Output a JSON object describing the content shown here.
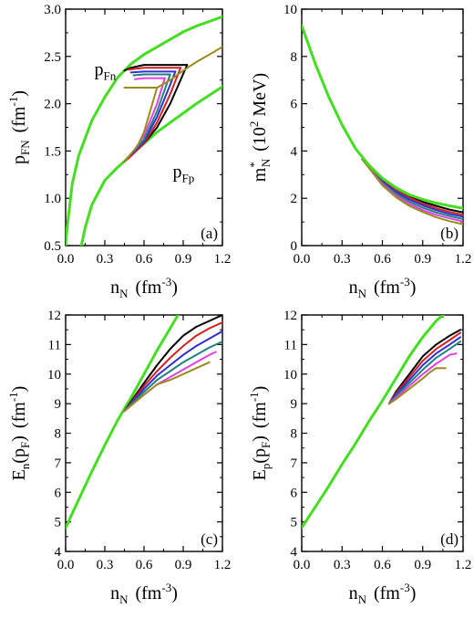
{
  "chart_data": [
    {
      "panel": "a",
      "type": "line",
      "panel_label": "(a)",
      "ylabel_main": "p",
      "ylabel_sub": "FN",
      "ylabel_unit": "(fm",
      "ylabel_exp": "-1",
      "ylabel_close": ")",
      "xlabel_main": "n",
      "xlabel_sub": "N",
      "xlabel_unit": "(fm",
      "xlabel_exp": "-3",
      "xlabel_close": ")",
      "xlim": [
        0,
        1.2
      ],
      "ylim": [
        0.5,
        3.0
      ],
      "xticks": [
        "0.0",
        "0.3",
        "0.6",
        "0.9",
        "1.2"
      ],
      "yticks": [
        "0.5",
        "1.0",
        "1.5",
        "2.0",
        "2.5",
        "3.0"
      ],
      "annotations": [
        {
          "main": "p",
          "sub": "Fn",
          "x": 0.22,
          "y": 2.3
        },
        {
          "main": "p",
          "sub": "Fp",
          "x": 0.82,
          "y": 1.22
        }
      ],
      "series": [
        {
          "color": "#44dd22",
          "width": 3,
          "x": [
            0.0,
            0.01,
            0.05,
            0.1,
            0.2,
            0.3,
            0.4,
            0.45,
            0.5,
            0.6,
            0.7,
            0.8,
            0.9,
            1.0,
            1.1,
            1.2
          ],
          "y": [
            0.5,
            0.67,
            1.15,
            1.45,
            1.82,
            2.07,
            2.28,
            2.35,
            2.42,
            2.52,
            2.6,
            2.68,
            2.76,
            2.82,
            2.87,
            2.92
          ]
        },
        {
          "color": "#44dd22",
          "width": 3,
          "x": [
            0.12,
            0.15,
            0.2,
            0.3,
            0.4,
            0.45,
            0.5,
            0.6,
            0.7,
            0.8,
            0.9,
            1.0,
            1.1,
            1.2
          ],
          "y": [
            0.5,
            0.69,
            0.93,
            1.19,
            1.33,
            1.39,
            1.46,
            1.58,
            1.7,
            1.8,
            1.9,
            2.0,
            2.09,
            2.18
          ]
        },
        {
          "color": "#000000",
          "width": 2,
          "x": [
            0.45,
            0.5,
            0.6,
            0.7,
            0.8,
            0.9,
            0.93
          ],
          "y": [
            2.35,
            2.38,
            2.41,
            2.41,
            2.41,
            2.41,
            2.41
          ]
        },
        {
          "color": "#000000",
          "width": 2,
          "x": [
            0.45,
            0.5,
            0.6,
            0.7,
            0.8,
            0.93
          ],
          "y": [
            1.39,
            1.46,
            1.58,
            1.75,
            2.0,
            2.41
          ]
        },
        {
          "color": "#d32020",
          "width": 2,
          "x": [
            0.48,
            0.6,
            0.7,
            0.8,
            0.88
          ],
          "y": [
            2.36,
            2.38,
            2.38,
            2.38,
            2.38
          ]
        },
        {
          "color": "#d32020",
          "width": 2,
          "x": [
            0.48,
            0.6,
            0.7,
            0.8,
            0.88
          ],
          "y": [
            1.42,
            1.58,
            1.8,
            2.1,
            2.38
          ]
        },
        {
          "color": "#3030d0",
          "width": 2,
          "x": [
            0.5,
            0.6,
            0.7,
            0.8,
            0.84
          ],
          "y": [
            2.33,
            2.34,
            2.34,
            2.34,
            2.34
          ]
        },
        {
          "color": "#3030d0",
          "width": 2,
          "x": [
            0.5,
            0.6,
            0.7,
            0.8,
            0.84
          ],
          "y": [
            1.46,
            1.6,
            1.86,
            2.2,
            2.34
          ]
        },
        {
          "color": "#208080",
          "width": 2,
          "x": [
            0.52,
            0.6,
            0.7,
            0.8
          ],
          "y": [
            2.3,
            2.31,
            2.31,
            2.31
          ]
        },
        {
          "color": "#208080",
          "width": 2,
          "x": [
            0.52,
            0.6,
            0.7,
            0.8
          ],
          "y": [
            1.5,
            1.62,
            1.92,
            2.31
          ]
        },
        {
          "color": "#e040e0",
          "width": 2,
          "x": [
            0.53,
            0.6,
            0.7,
            0.76
          ],
          "y": [
            2.26,
            2.27,
            2.27,
            2.27
          ]
        },
        {
          "color": "#e040e0",
          "width": 2,
          "x": [
            0.53,
            0.6,
            0.7,
            0.76
          ],
          "y": [
            1.52,
            1.66,
            2.0,
            2.27
          ]
        },
        {
          "color": "#9a8a20",
          "width": 2,
          "x": [
            0.45,
            0.55,
            0.65,
            0.7
          ],
          "y": [
            2.17,
            2.17,
            2.17,
            2.17
          ]
        },
        {
          "color": "#9a8a20",
          "width": 2,
          "x": [
            0.45,
            0.55,
            0.6,
            0.7,
            0.8,
            0.9,
            1.0,
            1.1,
            1.2
          ],
          "y": [
            1.39,
            1.55,
            1.7,
            2.17,
            2.25,
            2.35,
            2.44,
            2.52,
            2.6
          ]
        }
      ]
    },
    {
      "panel": "b",
      "type": "line",
      "panel_label": "(b)",
      "ylabel_main": "m",
      "ylabel_sup": "*",
      "ylabel_sub": "N",
      "ylabel_unit": "(10",
      "ylabel_exp": "2",
      "ylabel_close": " MeV)",
      "xlabel_main": "n",
      "xlabel_sub": "N",
      "xlabel_unit": "(fm",
      "xlabel_exp": "-3",
      "xlabel_close": ")",
      "xlim": [
        0,
        1.2
      ],
      "ylim": [
        0,
        10
      ],
      "xticks": [
        "0.0",
        "0.3",
        "0.6",
        "0.9",
        "1.2"
      ],
      "yticks": [
        "0",
        "2",
        "4",
        "6",
        "8",
        "10"
      ],
      "series": [
        {
          "color": "#000000",
          "width": 2,
          "x": [
            0.45,
            0.6,
            0.7,
            0.8,
            0.9,
            1.0,
            1.1,
            1.2
          ],
          "y": [
            3.65,
            2.8,
            2.4,
            2.1,
            1.85,
            1.68,
            1.52,
            1.4
          ]
        },
        {
          "color": "#d32020",
          "width": 2,
          "x": [
            0.45,
            0.6,
            0.7,
            0.8,
            0.9,
            1.0,
            1.1,
            1.2
          ],
          "y": [
            3.65,
            2.75,
            2.35,
            2.03,
            1.78,
            1.58,
            1.42,
            1.3
          ]
        },
        {
          "color": "#3030d0",
          "width": 2,
          "x": [
            0.45,
            0.6,
            0.7,
            0.8,
            0.9,
            1.0,
            1.1,
            1.2
          ],
          "y": [
            3.65,
            2.7,
            2.28,
            1.95,
            1.7,
            1.5,
            1.34,
            1.22
          ]
        },
        {
          "color": "#208080",
          "width": 2,
          "x": [
            0.45,
            0.6,
            0.7,
            0.8,
            0.9,
            1.0,
            1.1,
            1.2
          ],
          "y": [
            3.65,
            2.65,
            2.2,
            1.86,
            1.6,
            1.4,
            1.25,
            1.12
          ]
        },
        {
          "color": "#e040e0",
          "width": 2,
          "x": [
            0.45,
            0.6,
            0.7,
            0.8,
            0.9,
            1.0,
            1.1,
            1.2
          ],
          "y": [
            3.65,
            2.6,
            2.12,
            1.77,
            1.5,
            1.3,
            1.15,
            1.02
          ]
        },
        {
          "color": "#9a8a20",
          "width": 2,
          "x": [
            0.45,
            0.6,
            0.7,
            0.8,
            0.9,
            1.0,
            1.1,
            1.2
          ],
          "y": [
            3.65,
            2.55,
            2.05,
            1.68,
            1.42,
            1.2,
            1.03,
            0.9
          ]
        },
        {
          "color": "#44dd22",
          "width": 3,
          "x": [
            0.0,
            0.05,
            0.1,
            0.2,
            0.3,
            0.4,
            0.5,
            0.6,
            0.7,
            0.8,
            0.9,
            1.0,
            1.1,
            1.2
          ],
          "y": [
            9.3,
            8.5,
            7.7,
            6.3,
            5.1,
            4.1,
            3.4,
            2.85,
            2.45,
            2.15,
            1.95,
            1.8,
            1.68,
            1.58
          ]
        }
      ]
    },
    {
      "panel": "c",
      "type": "line",
      "panel_label": "(c)",
      "ylabel_main": "E",
      "ylabel_sub": "n",
      "ylabel_arg": "(p",
      "ylabel_arg_sub": "F",
      "ylabel_arg_close": ")",
      "ylabel_unit": "(fm",
      "ylabel_exp": "-1",
      "ylabel_close": ")",
      "xlabel_main": "n",
      "xlabel_sub": "N",
      "xlabel_unit": "(fm",
      "xlabel_exp": "-3",
      "xlabel_close": ")",
      "xlim": [
        0,
        1.2
      ],
      "ylim": [
        4,
        12
      ],
      "xticks": [
        "0.0",
        "0.3",
        "0.6",
        "0.9",
        "1.2"
      ],
      "yticks": [
        "4",
        "5",
        "6",
        "7",
        "8",
        "9",
        "10",
        "11",
        "12"
      ],
      "series": [
        {
          "color": "#44dd22",
          "width": 3,
          "x": [
            0.0,
            0.1,
            0.2,
            0.3,
            0.4,
            0.5,
            0.6,
            0.7,
            0.8,
            0.86
          ],
          "y": [
            4.8,
            5.75,
            6.7,
            7.6,
            8.45,
            9.2,
            10.0,
            10.8,
            11.55,
            12.0
          ]
        },
        {
          "color": "#000000",
          "width": 2,
          "x": [
            0.45,
            0.6,
            0.7,
            0.8,
            0.9,
            1.0,
            1.1,
            1.2
          ],
          "y": [
            8.75,
            9.7,
            10.3,
            10.85,
            11.3,
            11.6,
            11.8,
            12.0
          ]
        },
        {
          "color": "#d32020",
          "width": 2,
          "x": [
            0.45,
            0.6,
            0.7,
            0.8,
            0.9,
            1.0,
            1.1,
            1.2
          ],
          "y": [
            8.75,
            9.6,
            10.1,
            10.55,
            10.95,
            11.3,
            11.55,
            11.75
          ]
        },
        {
          "color": "#3030d0",
          "width": 2,
          "x": [
            0.45,
            0.6,
            0.7,
            0.8,
            0.9,
            1.0,
            1.1,
            1.2
          ],
          "y": [
            8.75,
            9.5,
            9.95,
            10.3,
            10.65,
            10.95,
            11.2,
            11.45
          ]
        },
        {
          "color": "#208080",
          "width": 2,
          "x": [
            0.45,
            0.6,
            0.7,
            0.8,
            0.9,
            1.0,
            1.1,
            1.2
          ],
          "y": [
            8.75,
            9.4,
            9.8,
            10.1,
            10.4,
            10.65,
            10.9,
            11.1
          ]
        },
        {
          "color": "#e040e0",
          "width": 2,
          "x": [
            0.45,
            0.6,
            0.7,
            0.8,
            0.9,
            1.0,
            1.1,
            1.15
          ],
          "y": [
            8.75,
            9.3,
            9.65,
            9.9,
            10.15,
            10.4,
            10.65,
            10.75
          ]
        },
        {
          "color": "#9a8a20",
          "width": 2,
          "x": [
            0.45,
            0.6,
            0.7,
            0.8,
            0.9,
            1.0,
            1.1
          ],
          "y": [
            8.75,
            9.3,
            9.65,
            9.8,
            10.0,
            10.2,
            10.4
          ]
        }
      ]
    },
    {
      "panel": "d",
      "type": "line",
      "panel_label": "(d)",
      "ylabel_main": "E",
      "ylabel_sub": "p",
      "ylabel_arg": "(p",
      "ylabel_arg_sub": "F",
      "ylabel_arg_close": ")",
      "ylabel_unit": "(fm",
      "ylabel_exp": "-1",
      "ylabel_close": ")",
      "xlabel_main": "n",
      "xlabel_sub": "N",
      "xlabel_unit": "(fm",
      "xlabel_exp": "-3",
      "xlabel_close": ")",
      "xlim": [
        0,
        1.2
      ],
      "ylim": [
        4,
        12
      ],
      "xticks": [
        "0.0",
        "0.3",
        "0.6",
        "0.9",
        "1.2"
      ],
      "yticks": [
        "4",
        "5",
        "6",
        "7",
        "8",
        "9",
        "10",
        "11",
        "12"
      ],
      "series": [
        {
          "color": "#44dd22",
          "width": 3,
          "x": [
            0.0,
            0.1,
            0.2,
            0.3,
            0.4,
            0.5,
            0.6,
            0.7,
            0.8,
            0.9,
            1.0,
            1.05
          ],
          "y": [
            4.8,
            5.5,
            6.2,
            6.95,
            7.65,
            8.4,
            9.1,
            9.85,
            10.6,
            11.25,
            11.8,
            12.0
          ]
        },
        {
          "color": "#000000",
          "width": 2,
          "x": [
            0.65,
            0.7,
            0.8,
            0.9,
            1.0,
            1.1,
            1.18
          ],
          "y": [
            9.0,
            9.4,
            10.0,
            10.6,
            11.0,
            11.3,
            11.5
          ]
        },
        {
          "color": "#d32020",
          "width": 2,
          "x": [
            0.65,
            0.7,
            0.8,
            0.9,
            1.0,
            1.1,
            1.18
          ],
          "y": [
            9.0,
            9.35,
            9.9,
            10.45,
            10.85,
            11.15,
            11.4
          ]
        },
        {
          "color": "#3030d0",
          "width": 2,
          "x": [
            0.65,
            0.7,
            0.8,
            0.9,
            1.0,
            1.1,
            1.18
          ],
          "y": [
            9.0,
            9.3,
            9.8,
            10.3,
            10.7,
            11.0,
            11.25
          ]
        },
        {
          "color": "#208080",
          "width": 2,
          "x": [
            0.65,
            0.7,
            0.8,
            0.9,
            1.0,
            1.1,
            1.18
          ],
          "y": [
            9.0,
            9.25,
            9.7,
            10.15,
            10.55,
            10.85,
            11.1
          ]
        },
        {
          "color": "#e040e0",
          "width": 2,
          "x": [
            0.65,
            0.7,
            0.8,
            0.9,
            1.0,
            1.1,
            1.15
          ],
          "y": [
            9.0,
            9.2,
            9.6,
            10.0,
            10.35,
            10.65,
            10.7
          ]
        },
        {
          "color": "#9a8a20",
          "width": 2,
          "x": [
            0.65,
            0.7,
            0.8,
            0.9,
            0.95,
            1.0,
            1.07
          ],
          "y": [
            9.0,
            9.15,
            9.5,
            9.85,
            10.05,
            10.2,
            10.2
          ]
        }
      ]
    }
  ]
}
